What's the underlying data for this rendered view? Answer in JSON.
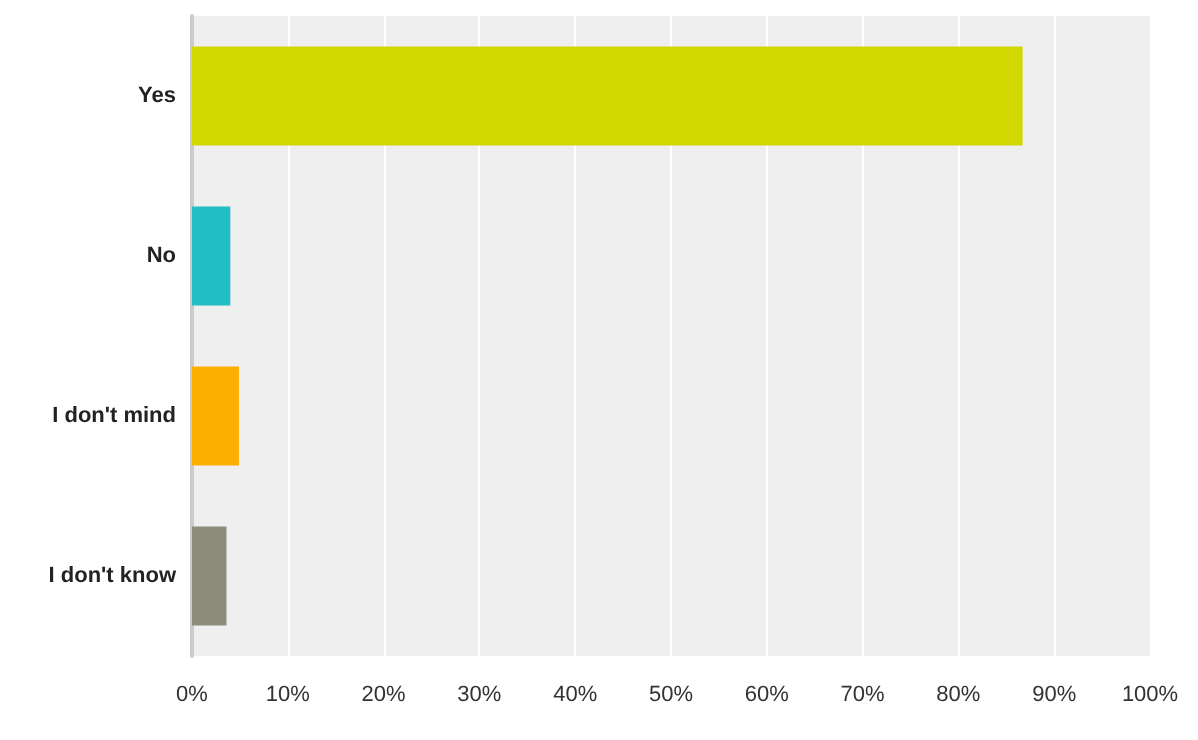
{
  "chart_data": {
    "type": "bar",
    "orientation": "horizontal",
    "categories": [
      "Yes",
      "No",
      "I don't mind",
      "I don't know"
    ],
    "values": [
      86.7,
      4.0,
      4.9,
      3.6
    ],
    "colors": [
      "#d0d800",
      "#21bec3",
      "#fbb000",
      "#8c8c7c"
    ],
    "xlim": [
      0,
      100
    ],
    "xticks": [
      {
        "value": 0,
        "label": "0%"
      },
      {
        "value": 10,
        "label": "10%"
      },
      {
        "value": 20,
        "label": "20%"
      },
      {
        "value": 30,
        "label": "30%"
      },
      {
        "value": 40,
        "label": "40%"
      },
      {
        "value": 50,
        "label": "50%"
      },
      {
        "value": 60,
        "label": "60%"
      },
      {
        "value": 70,
        "label": "70%"
      },
      {
        "value": 80,
        "label": "80%"
      },
      {
        "value": 90,
        "label": "90%"
      },
      {
        "value": 100,
        "label": "100%"
      }
    ],
    "grid": "x"
  }
}
